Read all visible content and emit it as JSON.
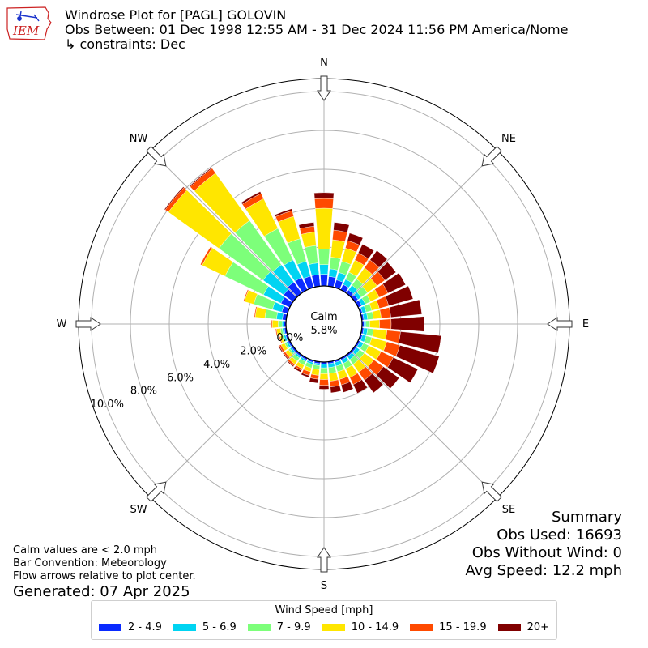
{
  "header": {
    "title": "Windrose Plot for [PAGL] GOLOVIN",
    "obs_between": "Obs Between: 01 Dec 1998 12:55 AM - 31 Dec 2024 11:56 PM America/Nome",
    "constraints": "↳ constraints: Dec"
  },
  "logo": {
    "text": "IEM",
    "icon": "iowa-state-outline-icon"
  },
  "notes": {
    "calm_note": "Calm values are < 2.0 mph",
    "bar_convention": "Bar Convention: Meteorology",
    "flow_arrows": "Flow arrows relative to plot center.",
    "generated": "Generated: 07 Apr 2025"
  },
  "summary": {
    "title": "Summary",
    "obs_used": "Obs Used: 16693",
    "obs_without_wind": "Obs Without Wind: 0",
    "avg_speed": "Avg Speed: 12.2 mph"
  },
  "legend": {
    "title": "Wind Speed [mph]",
    "items": [
      {
        "label": "2 - 4.9",
        "color": "#0a2aff"
      },
      {
        "label": "5 - 6.9",
        "color": "#00d4f2"
      },
      {
        "label": "7 - 9.9",
        "color": "#7dff7a"
      },
      {
        "label": "10 - 14.9",
        "color": "#ffe600"
      },
      {
        "label": "15 - 19.9",
        "color": "#ff4a00"
      },
      {
        "label": "20+",
        "color": "#800000"
      }
    ]
  },
  "chart_data": {
    "type": "windrose",
    "directions": [
      "N",
      "NE",
      "E",
      "SE",
      "S",
      "SW",
      "W",
      "NW"
    ],
    "radial_ticks": [
      0,
      2,
      4,
      6,
      8,
      10
    ],
    "radial_tick_labels": [
      "0.0%",
      "2.0%",
      "4.0%",
      "6.0%",
      "8.0%",
      "10.0%"
    ],
    "rmax": 12,
    "calm": {
      "label": "Calm",
      "value": "5.8%"
    },
    "bins": [
      "2 - 4.9",
      "5 - 6.9",
      "7 - 9.9",
      "10 - 14.9",
      "15 - 19.9",
      "20+"
    ],
    "colors": [
      "#0a2aff",
      "#00d4f2",
      "#7dff7a",
      "#ffe600",
      "#ff4a00",
      "#800000"
    ],
    "sectors": [
      {
        "dir": 0,
        "values": [
          0.6,
          0.5,
          0.8,
          2.1,
          0.5,
          0.3
        ]
      },
      {
        "dir": 10,
        "values": [
          0.5,
          0.4,
          0.6,
          0.9,
          0.5,
          0.4
        ]
      },
      {
        "dir": 20,
        "values": [
          0.4,
          0.4,
          0.6,
          0.7,
          0.4,
          0.4
        ]
      },
      {
        "dir": 30,
        "values": [
          0.3,
          0.3,
          0.4,
          0.7,
          0.4,
          0.5
        ]
      },
      {
        "dir": 40,
        "values": [
          0.2,
          0.3,
          0.4,
          0.7,
          0.5,
          0.6
        ]
      },
      {
        "dir": 50,
        "values": [
          0.2,
          0.2,
          0.4,
          0.6,
          0.5,
          0.7
        ]
      },
      {
        "dir": 60,
        "values": [
          0.2,
          0.2,
          0.3,
          0.5,
          0.5,
          1.0
        ]
      },
      {
        "dir": 70,
        "values": [
          0.1,
          0.2,
          0.3,
          0.4,
          0.5,
          1.3
        ]
      },
      {
        "dir": 80,
        "values": [
          0.1,
          0.2,
          0.3,
          0.4,
          0.5,
          1.6
        ]
      },
      {
        "dir": 90,
        "values": [
          0.1,
          0.1,
          0.2,
          0.5,
          0.6,
          1.7
        ]
      },
      {
        "dir": 100,
        "values": [
          0.1,
          0.2,
          0.3,
          0.7,
          0.7,
          2.1
        ]
      },
      {
        "dir": 110,
        "values": [
          0.1,
          0.2,
          0.3,
          0.8,
          0.7,
          2.1
        ]
      },
      {
        "dir": 120,
        "values": [
          0.1,
          0.2,
          0.3,
          0.7,
          0.7,
          1.4
        ]
      },
      {
        "dir": 130,
        "values": [
          0.1,
          0.2,
          0.3,
          0.6,
          0.6,
          1.0
        ]
      },
      {
        "dir": 140,
        "values": [
          0.1,
          0.2,
          0.3,
          0.5,
          0.5,
          0.8
        ]
      },
      {
        "dir": 150,
        "values": [
          0.1,
          0.2,
          0.3,
          0.5,
          0.4,
          0.5
        ]
      },
      {
        "dir": 160,
        "values": [
          0.1,
          0.2,
          0.3,
          0.4,
          0.3,
          0.4
        ]
      },
      {
        "dir": 170,
        "values": [
          0.1,
          0.2,
          0.3,
          0.4,
          0.3,
          0.3
        ]
      },
      {
        "dir": 180,
        "values": [
          0.1,
          0.2,
          0.3,
          0.3,
          0.3,
          0.2
        ]
      },
      {
        "dir": 190,
        "values": [
          0.1,
          0.1,
          0.2,
          0.3,
          0.2,
          0.2
        ]
      },
      {
        "dir": 200,
        "values": [
          0.1,
          0.1,
          0.2,
          0.2,
          0.2,
          0.1
        ]
      },
      {
        "dir": 210,
        "values": [
          0.1,
          0.1,
          0.2,
          0.2,
          0.1,
          0.1
        ]
      },
      {
        "dir": 220,
        "values": [
          0.1,
          0.1,
          0.2,
          0.2,
          0.1,
          0.05
        ]
      },
      {
        "dir": 230,
        "values": [
          0.1,
          0.1,
          0.1,
          0.2,
          0.1,
          0.05
        ]
      },
      {
        "dir": 240,
        "values": [
          0.1,
          0.1,
          0.1,
          0.2,
          0.1,
          0.05
        ]
      },
      {
        "dir": 250,
        "values": [
          0.1,
          0.1,
          0.1,
          0.1,
          0.05,
          0.0
        ]
      },
      {
        "dir": 260,
        "values": [
          0.1,
          0.1,
          0.1,
          0.2,
          0.05,
          0.0
        ]
      },
      {
        "dir": 270,
        "values": [
          0.1,
          0.1,
          0.2,
          0.3,
          0.05,
          0.0
        ]
      },
      {
        "dir": 280,
        "values": [
          0.2,
          0.3,
          0.6,
          0.5,
          0.05,
          0.0
        ]
      },
      {
        "dir": 290,
        "values": [
          0.3,
          0.5,
          1.0,
          0.5,
          0.05,
          0.0
        ]
      },
      {
        "dir": 300,
        "values": [
          0.5,
          1.0,
          2.2,
          1.3,
          0.1,
          0.0
        ]
      },
      {
        "dir": 310,
        "values": [
          0.6,
          1.3,
          2.8,
          3.2,
          0.2,
          0.05
        ]
      },
      {
        "dir": 320,
        "values": [
          0.7,
          1.1,
          2.8,
          3.0,
          0.3,
          0.05
        ]
      },
      {
        "dir": 330,
        "values": [
          0.7,
          1.0,
          1.8,
          1.7,
          0.3,
          0.1
        ]
      },
      {
        "dir": 340,
        "values": [
          0.6,
          0.8,
          1.2,
          1.2,
          0.3,
          0.1
        ]
      },
      {
        "dir": 350,
        "values": [
          0.6,
          0.6,
          0.9,
          0.7,
          0.3,
          0.2
        ]
      }
    ]
  }
}
